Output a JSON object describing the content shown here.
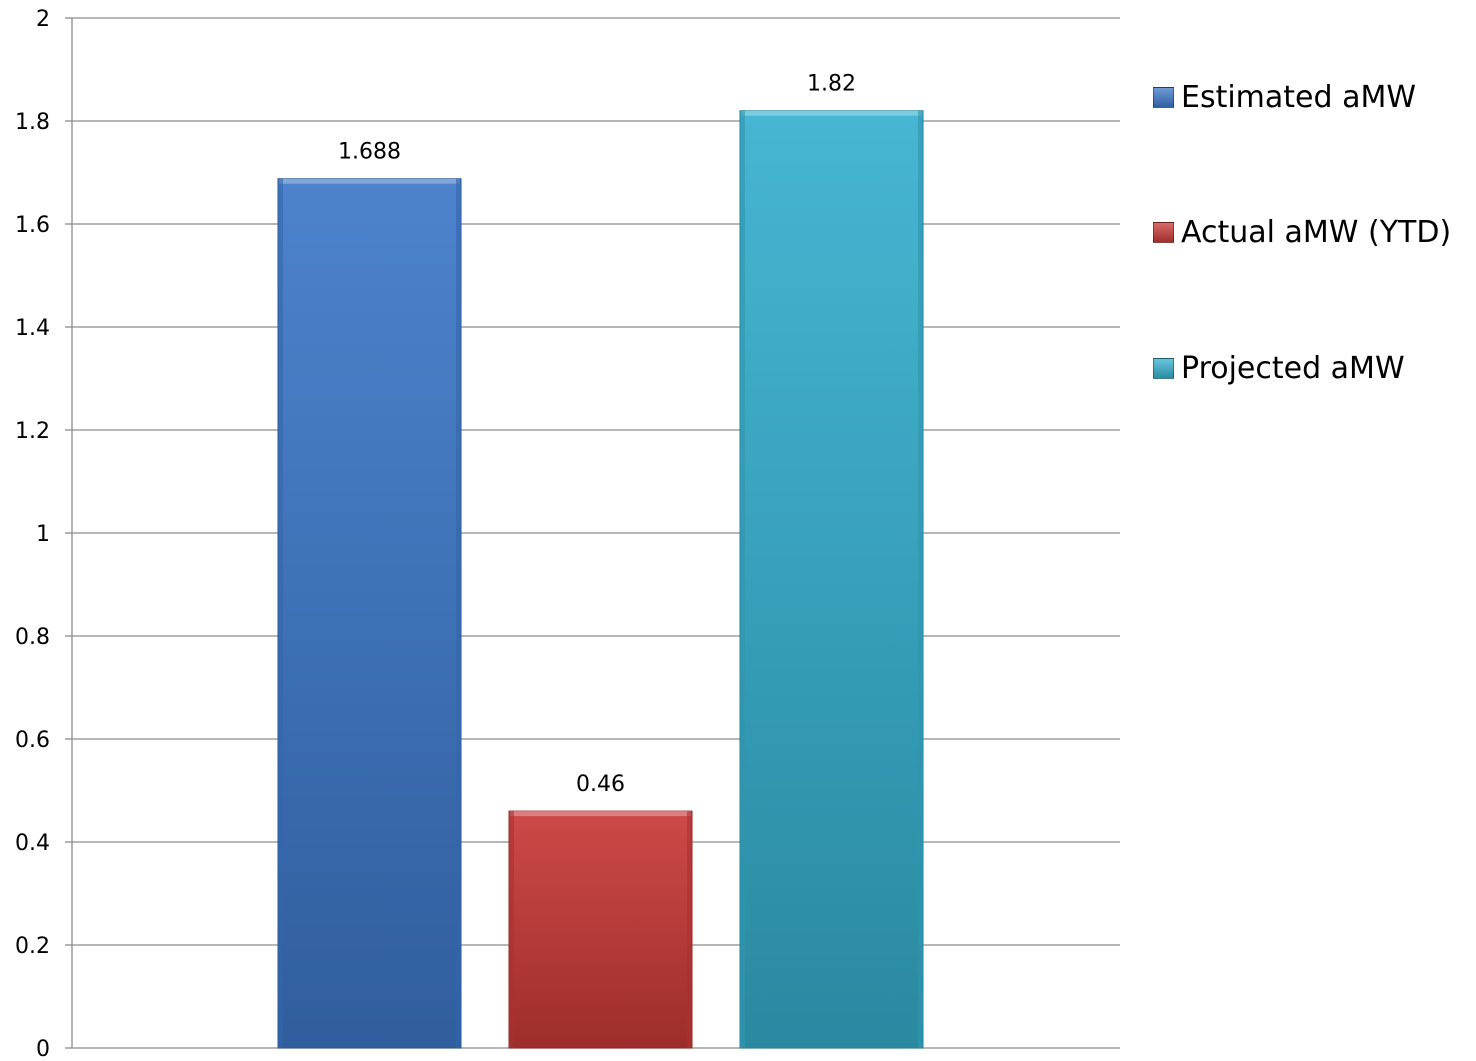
{
  "chart_data": {
    "type": "bar",
    "title": "",
    "xlabel": "",
    "ylabel": "",
    "ylim": [
      0,
      2
    ],
    "yticks": [
      "0",
      "0.2",
      "0.4",
      "0.6",
      "0.8",
      "1",
      "1.2",
      "1.4",
      "1.6",
      "1.8",
      "2"
    ],
    "grid": true,
    "legend_position": "right",
    "series": [
      {
        "name": "Estimated aMW",
        "value": 1.688,
        "label": "1.688",
        "color": "#3d78c9"
      },
      {
        "name": "Actual aMW (YTD)",
        "value": 0.46,
        "label": "0.46",
        "color": "#c93a38"
      },
      {
        "name": "Projected aMW",
        "value": 1.82,
        "label": "1.82",
        "color": "#36b0cf"
      }
    ]
  }
}
